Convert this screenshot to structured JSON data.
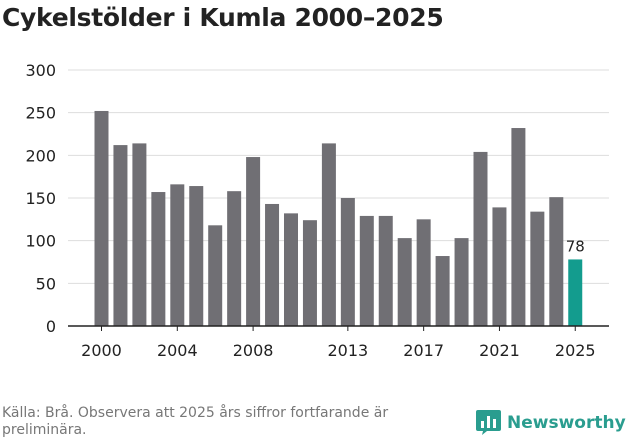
{
  "title": "Cykelstölder i Kumla 2000–2025",
  "source": "Källa: Brå. Observera att 2025 års siffror fortfarande är preliminära.",
  "brand": {
    "name": "Newsworthy",
    "icon": "bar-chart-icon",
    "color": "#2a9d8f"
  },
  "colors": {
    "bar": "#706f74",
    "highlight": "#139c8e",
    "grid": "#dddddd",
    "text": "#222222"
  },
  "chart_data": {
    "type": "bar",
    "title": "Cykelstölder i Kumla 2000–2025",
    "xlabel": "",
    "ylabel": "",
    "ylim": [
      0,
      300
    ],
    "yticks": [
      "0",
      "50",
      "100",
      "150",
      "200",
      "250",
      "300"
    ],
    "xtick_labels": [
      "2000",
      "2004",
      "2008",
      "2013",
      "2017",
      "2021",
      "2025"
    ],
    "grid": true,
    "categories": [
      "2000",
      "2001",
      "2002",
      "2003",
      "2004",
      "2005",
      "2006",
      "2007",
      "2008",
      "2009",
      "2010",
      "2011",
      "2012",
      "2013",
      "2014",
      "2015",
      "2016",
      "2017",
      "2018",
      "2019",
      "2020",
      "2021",
      "2022",
      "2023",
      "2024",
      "2025"
    ],
    "values": [
      252,
      212,
      214,
      157,
      166,
      164,
      118,
      158,
      198,
      143,
      132,
      124,
      214,
      150,
      129,
      129,
      103,
      125,
      82,
      103,
      204,
      139,
      232,
      134,
      151,
      78
    ],
    "highlight": {
      "category": "2025",
      "label": "78"
    }
  }
}
